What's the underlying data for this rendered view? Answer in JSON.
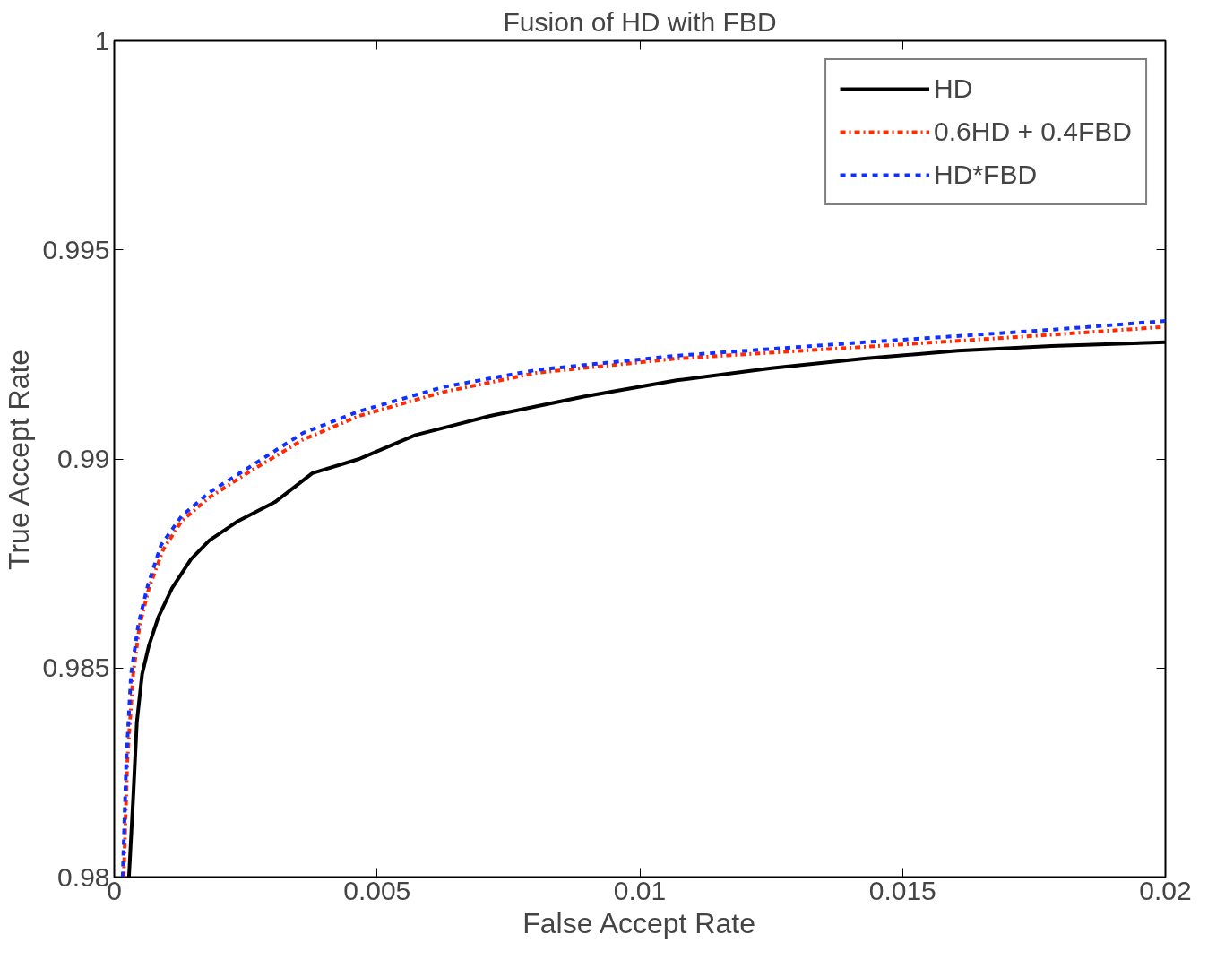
{
  "chart_data": {
    "type": "line",
    "title": "Fusion of HD with FBD",
    "xlabel": "False Accept Rate",
    "ylabel": "True Accept Rate",
    "xlim": [
      0,
      0.02
    ],
    "ylim": [
      0.98,
      1
    ],
    "xticks": [
      0,
      0.005,
      0.01,
      0.015,
      0.02
    ],
    "yticks": [
      0.98,
      0.985,
      0.99,
      0.995,
      1
    ],
    "grid": false,
    "legend": "top right",
    "marker": "none",
    "series": [
      {
        "name": "HD",
        "color": "#000000",
        "line_style": "solid",
        "x": [
          0.00028,
          0.00036,
          0.00043,
          0.00053,
          0.00066,
          0.00084,
          0.0011,
          0.00146,
          0.00181,
          0.00235,
          0.00306,
          0.00377,
          0.00466,
          0.00573,
          0.00715,
          0.00893,
          0.0107,
          0.0125,
          0.01427,
          0.01605,
          0.01783,
          0.02
        ],
        "values": [
          0.98,
          0.98188,
          0.98371,
          0.98485,
          0.98554,
          0.98622,
          0.98691,
          0.9876,
          0.98805,
          0.98851,
          0.98897,
          0.98966,
          0.99,
          0.99057,
          0.99103,
          0.99149,
          0.99188,
          0.99217,
          0.9924,
          0.99259,
          0.9927,
          0.99279
        ]
      },
      {
        "name": "0.6HD + 0.4FBD",
        "color": "#ff2a00",
        "line_style": "dashdot",
        "x": [
          0.00018,
          0.00025,
          0.00036,
          0.00048,
          0.00066,
          0.00093,
          0.00128,
          0.00181,
          0.00253,
          0.00359,
          0.00466,
          0.00626,
          0.00804,
          0.0107,
          0.01427,
          0.01783,
          0.02
        ],
        "values": [
          0.98,
          0.98279,
          0.98485,
          0.986,
          0.98691,
          0.98783,
          0.98851,
          0.98908,
          0.98966,
          0.99046,
          0.99103,
          0.9916,
          0.99206,
          0.9924,
          0.99268,
          0.99297,
          0.99316
        ]
      },
      {
        "name": "HD*FBD",
        "color": "#1030ff",
        "line_style": "dashed",
        "x": [
          0.00016,
          0.00023,
          0.00032,
          0.00046,
          0.00064,
          0.00089,
          0.00128,
          0.00181,
          0.00253,
          0.00359,
          0.00466,
          0.00626,
          0.00804,
          0.0107,
          0.01427,
          0.01783,
          0.02
        ],
        "values": [
          0.98,
          0.98279,
          0.98485,
          0.98605,
          0.98698,
          0.98794,
          0.98863,
          0.9892,
          0.98977,
          0.99062,
          0.99114,
          0.99172,
          0.99213,
          0.99247,
          0.99279,
          0.99309,
          0.9933
        ]
      }
    ]
  }
}
